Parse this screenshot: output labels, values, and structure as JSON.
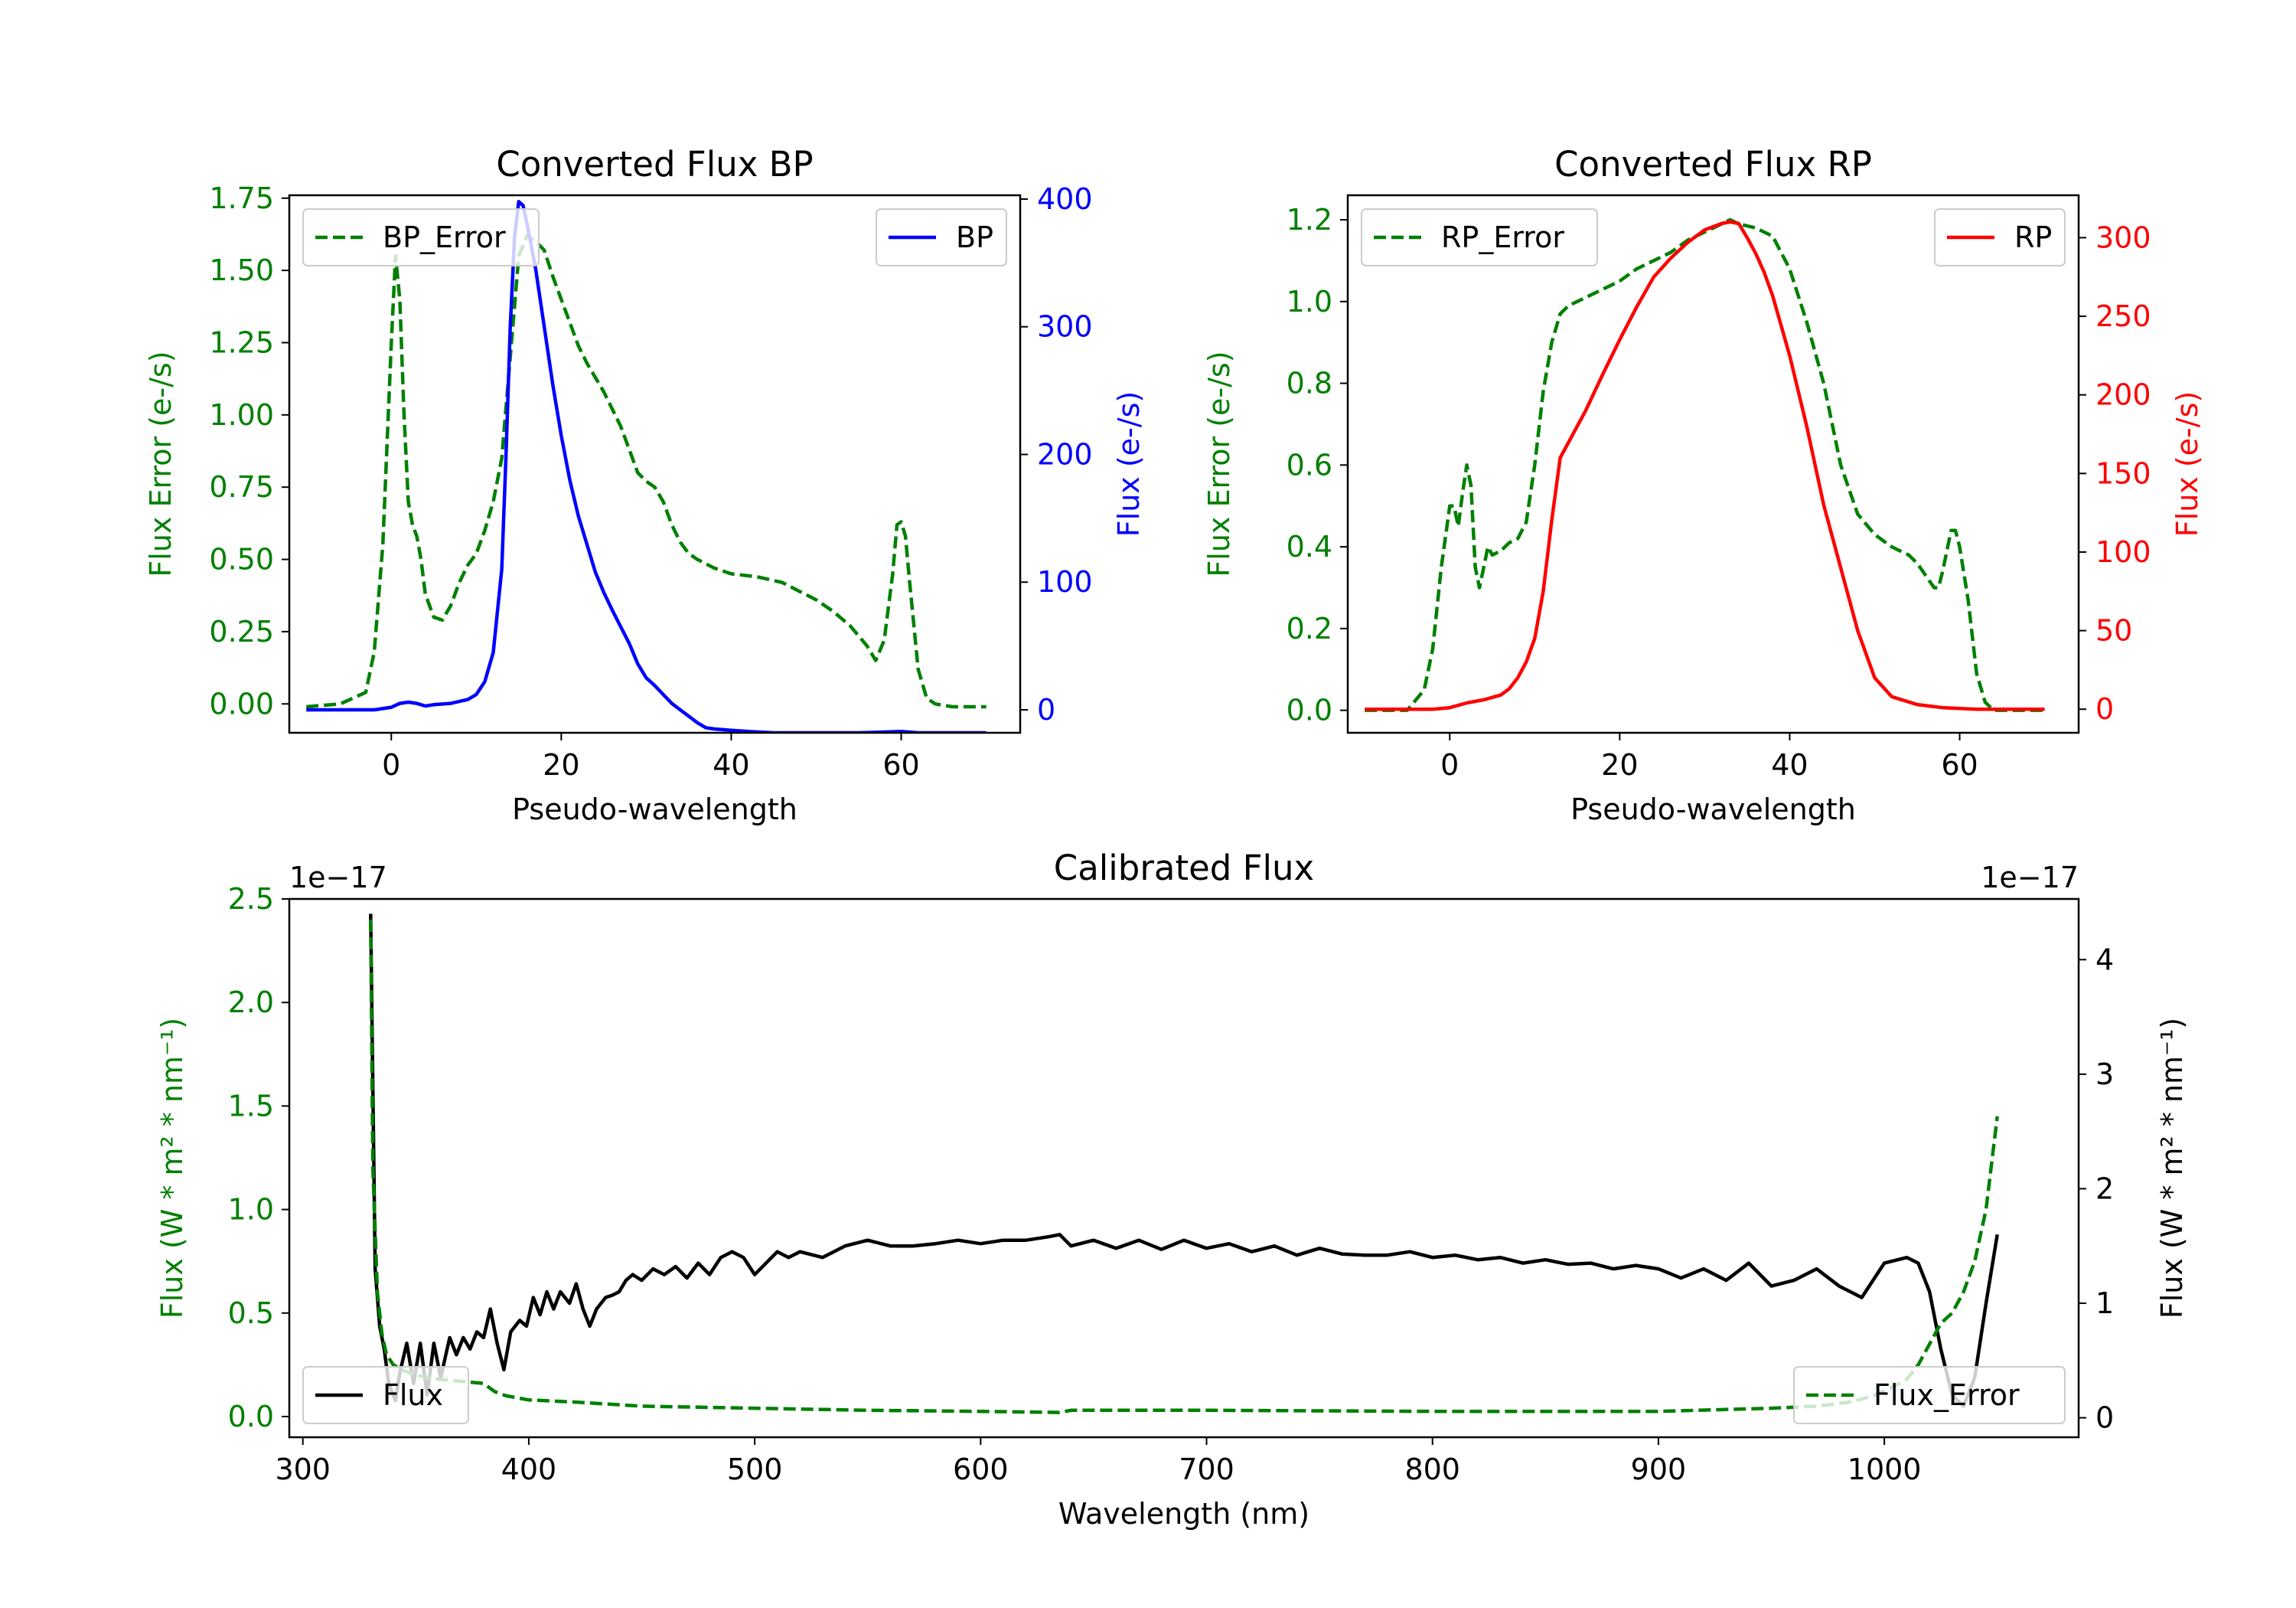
{
  "colors": {
    "green": "#008000",
    "blue": "#0000ff",
    "red": "#ff0000",
    "black": "#000000"
  },
  "chart_data": [
    {
      "id": "bp",
      "type": "line",
      "title": "Converted Flux BP",
      "xlabel": "Pseudo-wavelength",
      "xlim": [
        -12,
        74
      ],
      "xticks": [
        0,
        20,
        40,
        60
      ],
      "left_axis": {
        "label": "Flux Error (e-/s)",
        "color": "#008000",
        "ylim": [
          -0.1,
          1.76
        ],
        "ticks": [
          0.0,
          0.25,
          0.5,
          0.75,
          1.0,
          1.25,
          1.5,
          1.75
        ],
        "tick_labels": [
          "0.00",
          "0.25",
          "0.50",
          "0.75",
          "1.00",
          "1.25",
          "1.50",
          "1.75"
        ]
      },
      "right_axis": {
        "label": "Flux (e-/s)",
        "color": "#0000ff",
        "ylim": [
          -18,
          403
        ],
        "ticks": [
          0,
          100,
          200,
          300,
          400
        ],
        "tick_labels": [
          "0",
          "100",
          "200",
          "300",
          "400"
        ]
      },
      "series": [
        {
          "name": "BP_Error",
          "axis": "left",
          "style": "dashed",
          "color": "#008000",
          "x": [
            -10,
            -6,
            -3,
            -2,
            -1,
            0,
            0.5,
            1,
            1.5,
            2,
            2.5,
            3,
            3.5,
            4,
            5,
            6,
            7,
            8,
            9,
            10,
            11,
            12,
            13,
            14,
            15,
            16,
            17,
            18,
            19,
            20,
            21,
            22,
            23,
            24,
            25,
            26,
            27,
            28,
            29,
            30,
            31,
            32,
            33,
            34,
            35,
            36,
            38,
            40,
            43,
            46,
            48,
            50,
            52,
            54,
            56,
            57,
            58,
            59,
            59.5,
            60,
            60.5,
            61,
            62,
            63,
            64,
            66,
            70
          ],
          "values": [
            -0.01,
            0.0,
            0.04,
            0.18,
            0.55,
            1.25,
            1.55,
            1.4,
            1.0,
            0.7,
            0.62,
            0.58,
            0.5,
            0.38,
            0.3,
            0.29,
            0.34,
            0.42,
            0.48,
            0.52,
            0.6,
            0.7,
            0.85,
            1.2,
            1.55,
            1.62,
            1.6,
            1.57,
            1.48,
            1.4,
            1.32,
            1.24,
            1.18,
            1.13,
            1.08,
            1.02,
            0.96,
            0.88,
            0.8,
            0.77,
            0.75,
            0.7,
            0.62,
            0.56,
            0.52,
            0.5,
            0.47,
            0.45,
            0.44,
            0.42,
            0.39,
            0.36,
            0.32,
            0.27,
            0.2,
            0.15,
            0.22,
            0.45,
            0.62,
            0.63,
            0.58,
            0.42,
            0.12,
            0.02,
            0.0,
            -0.01,
            -0.01
          ]
        },
        {
          "name": "BP",
          "axis": "right",
          "style": "solid",
          "color": "#0000ff",
          "x": [
            -10,
            -4,
            -2,
            0,
            1,
            2,
            3,
            4,
            5,
            7,
            9,
            10,
            11,
            12,
            13,
            13.5,
            14,
            14.5,
            15,
            15.5,
            16,
            17,
            18,
            19,
            20,
            21,
            22,
            23,
            24,
            25,
            26,
            27,
            28,
            29,
            30,
            31,
            32,
            33,
            34,
            35,
            36,
            37,
            38,
            40,
            42,
            45,
            50,
            55,
            60,
            62,
            65,
            70
          ],
          "values": [
            0,
            0,
            0,
            2,
            5,
            6,
            5,
            3,
            4,
            5,
            8,
            12,
            22,
            45,
            110,
            200,
            300,
            370,
            398,
            395,
            380,
            345,
            300,
            255,
            215,
            180,
            152,
            130,
            108,
            92,
            78,
            65,
            52,
            36,
            25,
            19,
            12,
            5,
            0,
            -5,
            -10,
            -14,
            -15,
            -16,
            -17,
            -18,
            -18,
            -18,
            -17,
            -18,
            -18,
            -18
          ]
        }
      ],
      "legend": [
        {
          "label": "BP_Error",
          "position": "upper-left"
        },
        {
          "label": "BP",
          "position": "upper-right"
        }
      ]
    },
    {
      "id": "rp",
      "type": "line",
      "title": "Converted Flux RP",
      "xlabel": "Pseudo-wavelength",
      "xlim": [
        -12,
        74
      ],
      "xticks": [
        0,
        20,
        40,
        60
      ],
      "left_axis": {
        "label": "Flux Error (e-/s)",
        "color": "#008000",
        "ylim": [
          -0.055,
          1.26
        ],
        "ticks": [
          0.0,
          0.2,
          0.4,
          0.6,
          0.8,
          1.0,
          1.2
        ],
        "tick_labels": [
          "0.0",
          "0.2",
          "0.4",
          "0.6",
          "0.8",
          "1.0",
          "1.2"
        ]
      },
      "right_axis": {
        "label": "Flux (e-/s)",
        "color": "#ff0000",
        "ylim": [
          -15,
          327
        ],
        "ticks": [
          0,
          50,
          100,
          150,
          200,
          250,
          300
        ],
        "tick_labels": [
          "0",
          "50",
          "100",
          "150",
          "200",
          "250",
          "300"
        ]
      },
      "series": [
        {
          "name": "RP_Error",
          "axis": "left",
          "style": "dashed",
          "color": "#008000",
          "x": [
            -10,
            -5,
            -3,
            -2,
            -1,
            0,
            0.5,
            1,
            1.5,
            2,
            2.5,
            3,
            3.5,
            4,
            4.5,
            5,
            6,
            7,
            8,
            9,
            10,
            11,
            12,
            13,
            14,
            16,
            18,
            20,
            22,
            24,
            26,
            28,
            30,
            32,
            33,
            34,
            36,
            38,
            40,
            42,
            44,
            46,
            48,
            50,
            52,
            54,
            55,
            56,
            57,
            57.5,
            58,
            59,
            59.5,
            60,
            61,
            62,
            63,
            64,
            66,
            70
          ],
          "values": [
            0.0,
            0.0,
            0.05,
            0.15,
            0.35,
            0.5,
            0.5,
            0.45,
            0.53,
            0.6,
            0.55,
            0.35,
            0.3,
            0.35,
            0.4,
            0.38,
            0.39,
            0.41,
            0.42,
            0.46,
            0.6,
            0.78,
            0.9,
            0.97,
            0.99,
            1.01,
            1.03,
            1.05,
            1.08,
            1.1,
            1.12,
            1.15,
            1.17,
            1.19,
            1.2,
            1.19,
            1.18,
            1.16,
            1.08,
            0.95,
            0.8,
            0.6,
            0.48,
            0.43,
            0.4,
            0.38,
            0.36,
            0.33,
            0.3,
            0.3,
            0.34,
            0.44,
            0.44,
            0.4,
            0.27,
            0.09,
            0.02,
            0.0,
            0.0,
            0.0
          ]
        },
        {
          "name": "RP",
          "axis": "right",
          "style": "solid",
          "color": "#ff0000",
          "x": [
            -10,
            -4,
            -2,
            0,
            2,
            4,
            6,
            7,
            8,
            9,
            10,
            11,
            12,
            13,
            14,
            15,
            16,
            18,
            20,
            22,
            24,
            26,
            28,
            30,
            32,
            33,
            34,
            35,
            36,
            37,
            38,
            40,
            42,
            44,
            46,
            48,
            50,
            52,
            55,
            58,
            62,
            70
          ],
          "values": [
            0,
            0,
            0,
            1,
            4,
            6,
            9,
            13,
            20,
            30,
            45,
            75,
            120,
            160,
            170,
            180,
            190,
            213,
            235,
            256,
            275,
            287,
            297,
            305,
            309,
            310,
            309,
            300,
            290,
            278,
            263,
            225,
            180,
            130,
            90,
            50,
            20,
            8,
            3,
            1,
            0,
            0
          ]
        }
      ],
      "legend": [
        {
          "label": "RP_Error",
          "position": "upper-left"
        },
        {
          "label": "RP",
          "position": "upper-right"
        }
      ]
    },
    {
      "id": "cal",
      "type": "line",
      "title": "Calibrated Flux",
      "xlabel": "Wavelength (nm)",
      "xlim": [
        294,
        1086
      ],
      "xticks": [
        300,
        400,
        500,
        600,
        700,
        800,
        900,
        1000
      ],
      "left_axis": {
        "label": "Flux (W * m² * nm⁻¹)",
        "color": "#008000",
        "ylim": [
          -0.1,
          2.5
        ],
        "ticks": [
          0.0,
          0.5,
          1.0,
          1.5,
          2.0,
          2.5
        ],
        "tick_labels": [
          "0.0",
          "0.5",
          "1.0",
          "1.5",
          "2.0",
          "2.5"
        ],
        "offset_text": "1e−17"
      },
      "right_axis": {
        "label": "Flux (W * m² * nm⁻¹)",
        "color": "#000000",
        "ylim": [
          -0.17,
          4.53
        ],
        "ticks": [
          0,
          1,
          2,
          3,
          4
        ],
        "tick_labels": [
          "0",
          "1",
          "2",
          "3",
          "4"
        ],
        "offset_text": "1e−17"
      },
      "series": [
        {
          "name": "Flux",
          "axis": "right",
          "style": "solid",
          "color": "#000000",
          "x": [
            330,
            332,
            334,
            336,
            338,
            341,
            343,
            346,
            349,
            352,
            355,
            358,
            361,
            365,
            368,
            371,
            374,
            377,
            380,
            383,
            386,
            389,
            392,
            396,
            399,
            402,
            405,
            408,
            411,
            414,
            418,
            421,
            424,
            427,
            430,
            434,
            437,
            440,
            443,
            446,
            450,
            455,
            460,
            465,
            470,
            475,
            480,
            485,
            490,
            495,
            500,
            505,
            510,
            515,
            520,
            530,
            540,
            550,
            560,
            570,
            580,
            590,
            600,
            610,
            620,
            630,
            635,
            640,
            650,
            660,
            670,
            680,
            690,
            700,
            710,
            720,
            730,
            740,
            750,
            760,
            770,
            780,
            790,
            800,
            810,
            820,
            830,
            840,
            850,
            860,
            870,
            880,
            890,
            900,
            910,
            920,
            930,
            940,
            950,
            960,
            970,
            980,
            990,
            1000,
            1010,
            1015,
            1020,
            1025,
            1030,
            1035,
            1040,
            1045,
            1050
          ],
          "values": [
            4.4,
            1.3,
            0.8,
            0.6,
            0.3,
            0.15,
            0.4,
            0.65,
            0.3,
            0.65,
            0.2,
            0.65,
            0.35,
            0.7,
            0.55,
            0.7,
            0.6,
            0.75,
            0.7,
            0.95,
            0.65,
            0.42,
            0.75,
            0.85,
            0.8,
            1.05,
            0.9,
            1.1,
            0.95,
            1.1,
            1.0,
            1.17,
            0.95,
            0.8,
            0.95,
            1.05,
            1.07,
            1.1,
            1.2,
            1.25,
            1.2,
            1.3,
            1.25,
            1.32,
            1.22,
            1.35,
            1.25,
            1.4,
            1.45,
            1.4,
            1.25,
            1.35,
            1.45,
            1.4,
            1.45,
            1.4,
            1.5,
            1.55,
            1.5,
            1.5,
            1.52,
            1.55,
            1.52,
            1.55,
            1.55,
            1.58,
            1.6,
            1.5,
            1.55,
            1.48,
            1.55,
            1.47,
            1.55,
            1.48,
            1.52,
            1.45,
            1.5,
            1.42,
            1.48,
            1.43,
            1.42,
            1.42,
            1.45,
            1.4,
            1.42,
            1.38,
            1.4,
            1.35,
            1.38,
            1.34,
            1.35,
            1.3,
            1.33,
            1.3,
            1.22,
            1.3,
            1.2,
            1.35,
            1.15,
            1.2,
            1.3,
            1.15,
            1.05,
            1.35,
            1.4,
            1.35,
            1.1,
            0.6,
            0.2,
            0.1,
            0.35,
            1.0,
            1.6
          ]
        },
        {
          "name": "Flux_Error",
          "axis": "left",
          "style": "dashed",
          "color": "#008000",
          "x": [
            330,
            331,
            333,
            335,
            337,
            340,
            345,
            350,
            360,
            370,
            380,
            385,
            390,
            400,
            420,
            450,
            500,
            550,
            600,
            635,
            640,
            700,
            800,
            900,
            950,
            970,
            985,
            995,
            1005,
            1010,
            1015,
            1020,
            1025,
            1030,
            1035,
            1040,
            1045,
            1050
          ],
          "values": [
            2.4,
            1.2,
            0.6,
            0.4,
            0.3,
            0.25,
            0.22,
            0.2,
            0.18,
            0.17,
            0.16,
            0.12,
            0.1,
            0.08,
            0.07,
            0.05,
            0.04,
            0.03,
            0.025,
            0.02,
            0.03,
            0.03,
            0.025,
            0.025,
            0.04,
            0.05,
            0.07,
            0.1,
            0.15,
            0.18,
            0.25,
            0.35,
            0.45,
            0.5,
            0.6,
            0.75,
            1.0,
            1.45
          ]
        }
      ],
      "legend": [
        {
          "label": "Flux",
          "position": "lower-left"
        },
        {
          "label": "Flux_Error",
          "position": "lower-right"
        }
      ]
    }
  ]
}
